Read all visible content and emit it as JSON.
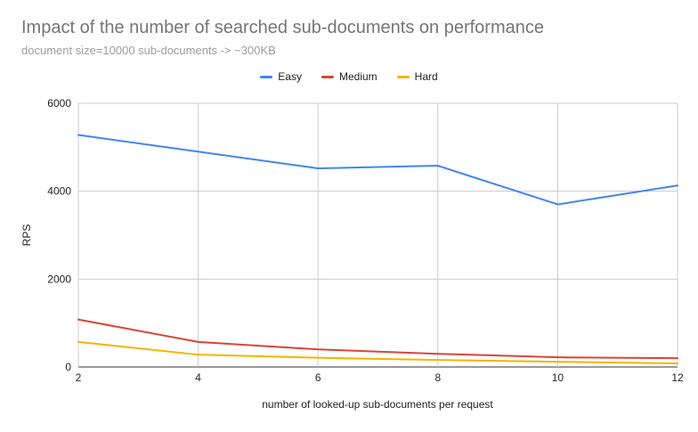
{
  "chart_data": {
    "type": "line",
    "title": "Impact of the number of searched sub-documents on performance",
    "subtitle": "document size=10000 sub-documents -> ~300KB",
    "xlabel": "number of looked-up sub-documents per request",
    "ylabel": "RPS",
    "x": [
      2,
      4,
      6,
      8,
      10,
      12
    ],
    "x_ticks": [
      "2",
      "4",
      "6",
      "8",
      "10",
      "12"
    ],
    "xlim": [
      2,
      12
    ],
    "ylim": [
      0,
      6000
    ],
    "y_ticks": [
      "0",
      "2000",
      "4000",
      "6000"
    ],
    "y_tick_values": [
      0,
      2000,
      4000,
      6000
    ],
    "grid": true,
    "legend_position": "top",
    "series": [
      {
        "name": "Easy",
        "color": "#4285f4",
        "values": [
          5280,
          4900,
          4520,
          4580,
          3700,
          4130
        ]
      },
      {
        "name": "Medium",
        "color": "#db4437",
        "values": [
          1080,
          570,
          400,
          300,
          220,
          200
        ]
      },
      {
        "name": "Hard",
        "color": "#f4b400",
        "values": [
          570,
          280,
          210,
          160,
          120,
          80
        ]
      }
    ]
  }
}
